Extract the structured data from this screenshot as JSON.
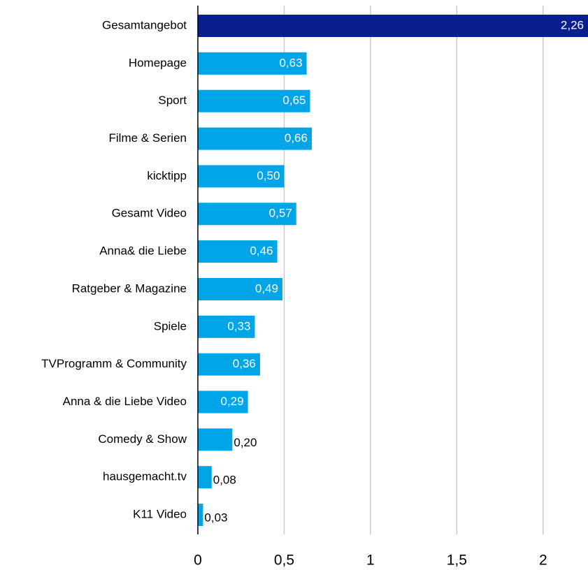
{
  "chart_data": {
    "type": "bar",
    "categories": [
      "Gesamtangebot",
      "Homepage",
      "Sport",
      "Filme & Serien",
      "kicktipp",
      "Gesamt Video",
      "Anna& die Liebe",
      "Ratgeber & Magazine",
      "Spiele",
      "TVProgramm & Community",
      "Anna & die Liebe Video",
      "Comedy & Show",
      "hausgemacht.tv",
      "K11 Video"
    ],
    "values": [
      2.26,
      0.63,
      0.65,
      0.66,
      0.5,
      0.57,
      0.46,
      0.49,
      0.33,
      0.36,
      0.29,
      0.2,
      0.08,
      0.03
    ],
    "value_labels": [
      "2,26",
      "0,63",
      "0,65",
      "0,66",
      "0,50",
      "0,57",
      "0,46",
      "0,49",
      "0,33",
      "0,36",
      "0,29",
      "0,20",
      "0,08",
      "0,03"
    ],
    "colors": [
      "#0a1f8f",
      "#00a5e8",
      "#00a5e8",
      "#00a5e8",
      "#00a5e8",
      "#00a5e8",
      "#00a5e8",
      "#00a5e8",
      "#00a5e8",
      "#00a5e8",
      "#00a5e8",
      "#00a5e8",
      "#00a5e8",
      "#00a5e8"
    ],
    "xlim": [
      0,
      2.26
    ],
    "xticks": [
      0,
      {
        "value": 0.5,
        "label": "0,5"
      },
      1,
      {
        "value": 1.5,
        "label": "1,5"
      },
      2
    ],
    "grid": true
  }
}
